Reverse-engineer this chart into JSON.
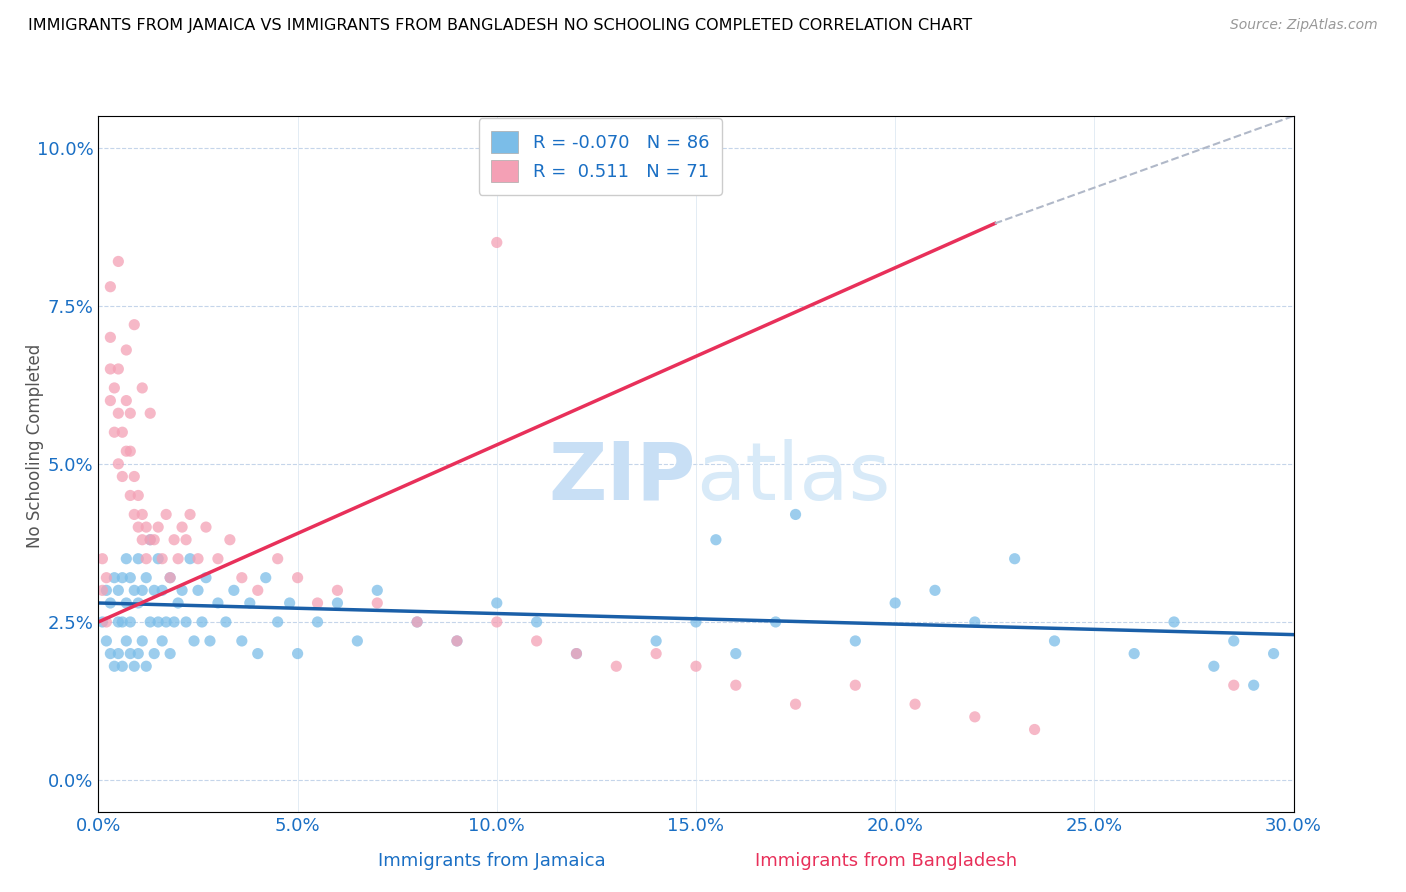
{
  "title": "IMMIGRANTS FROM JAMAICA VS IMMIGRANTS FROM BANGLADESH NO SCHOOLING COMPLETED CORRELATION CHART",
  "source": "Source: ZipAtlas.com",
  "xlabel_blue": "Immigrants from Jamaica",
  "xlabel_pink": "Immigrants from Bangladesh",
  "ylabel": "No Schooling Completed",
  "r_blue": -0.07,
  "n_blue": 86,
  "r_pink": 0.511,
  "n_pink": 71,
  "xlim": [
    0.0,
    0.3
  ],
  "ylim": [
    -0.005,
    0.105
  ],
  "color_blue": "#7bbde8",
  "color_pink": "#f4a0b5",
  "color_blue_line": "#1a5fa8",
  "color_pink_line": "#e8305a",
  "axis_color": "#1a6fc4",
  "watermark_color": "#c8dff5",
  "blue_scatter_x": [
    0.001,
    0.002,
    0.002,
    0.003,
    0.003,
    0.004,
    0.004,
    0.005,
    0.005,
    0.005,
    0.006,
    0.006,
    0.006,
    0.007,
    0.007,
    0.007,
    0.008,
    0.008,
    0.008,
    0.009,
    0.009,
    0.01,
    0.01,
    0.01,
    0.011,
    0.011,
    0.012,
    0.012,
    0.013,
    0.013,
    0.014,
    0.014,
    0.015,
    0.015,
    0.016,
    0.016,
    0.017,
    0.018,
    0.018,
    0.019,
    0.02,
    0.021,
    0.022,
    0.023,
    0.024,
    0.025,
    0.026,
    0.027,
    0.028,
    0.03,
    0.032,
    0.034,
    0.036,
    0.038,
    0.04,
    0.042,
    0.045,
    0.048,
    0.05,
    0.055,
    0.06,
    0.065,
    0.07,
    0.08,
    0.09,
    0.1,
    0.11,
    0.12,
    0.14,
    0.15,
    0.16,
    0.17,
    0.19,
    0.2,
    0.22,
    0.24,
    0.26,
    0.27,
    0.28,
    0.285,
    0.29,
    0.295,
    0.155,
    0.175,
    0.21,
    0.23
  ],
  "blue_scatter_y": [
    0.025,
    0.022,
    0.03,
    0.02,
    0.028,
    0.018,
    0.032,
    0.02,
    0.025,
    0.03,
    0.018,
    0.025,
    0.032,
    0.022,
    0.028,
    0.035,
    0.02,
    0.025,
    0.032,
    0.018,
    0.03,
    0.02,
    0.028,
    0.035,
    0.022,
    0.03,
    0.018,
    0.032,
    0.025,
    0.038,
    0.02,
    0.03,
    0.025,
    0.035,
    0.022,
    0.03,
    0.025,
    0.02,
    0.032,
    0.025,
    0.028,
    0.03,
    0.025,
    0.035,
    0.022,
    0.03,
    0.025,
    0.032,
    0.022,
    0.028,
    0.025,
    0.03,
    0.022,
    0.028,
    0.02,
    0.032,
    0.025,
    0.028,
    0.02,
    0.025,
    0.028,
    0.022,
    0.03,
    0.025,
    0.022,
    0.028,
    0.025,
    0.02,
    0.022,
    0.025,
    0.02,
    0.025,
    0.022,
    0.028,
    0.025,
    0.022,
    0.02,
    0.025,
    0.018,
    0.022,
    0.015,
    0.02,
    0.038,
    0.042,
    0.03,
    0.035
  ],
  "pink_scatter_x": [
    0.001,
    0.001,
    0.002,
    0.002,
    0.003,
    0.003,
    0.003,
    0.004,
    0.004,
    0.005,
    0.005,
    0.005,
    0.006,
    0.006,
    0.007,
    0.007,
    0.008,
    0.008,
    0.008,
    0.009,
    0.009,
    0.01,
    0.01,
    0.011,
    0.011,
    0.012,
    0.012,
    0.013,
    0.014,
    0.015,
    0.016,
    0.017,
    0.018,
    0.019,
    0.02,
    0.021,
    0.022,
    0.023,
    0.025,
    0.027,
    0.03,
    0.033,
    0.036,
    0.04,
    0.045,
    0.05,
    0.055,
    0.06,
    0.07,
    0.08,
    0.09,
    0.1,
    0.11,
    0.12,
    0.13,
    0.14,
    0.15,
    0.16,
    0.175,
    0.19,
    0.205,
    0.22,
    0.235,
    0.003,
    0.005,
    0.007,
    0.009,
    0.011,
    0.013,
    0.1,
    0.285
  ],
  "pink_scatter_y": [
    0.03,
    0.035,
    0.025,
    0.032,
    0.06,
    0.065,
    0.07,
    0.055,
    0.062,
    0.05,
    0.058,
    0.065,
    0.048,
    0.055,
    0.052,
    0.06,
    0.045,
    0.052,
    0.058,
    0.042,
    0.048,
    0.04,
    0.045,
    0.038,
    0.042,
    0.035,
    0.04,
    0.038,
    0.038,
    0.04,
    0.035,
    0.042,
    0.032,
    0.038,
    0.035,
    0.04,
    0.038,
    0.042,
    0.035,
    0.04,
    0.035,
    0.038,
    0.032,
    0.03,
    0.035,
    0.032,
    0.028,
    0.03,
    0.028,
    0.025,
    0.022,
    0.025,
    0.022,
    0.02,
    0.018,
    0.02,
    0.018,
    0.015,
    0.012,
    0.015,
    0.012,
    0.01,
    0.008,
    0.078,
    0.082,
    0.068,
    0.072,
    0.062,
    0.058,
    0.085,
    0.015
  ],
  "blue_line_x": [
    0.0,
    0.3
  ],
  "blue_line_y": [
    0.028,
    0.023
  ],
  "pink_line_x": [
    0.0,
    0.225
  ],
  "pink_line_y": [
    0.025,
    0.088
  ],
  "dash_line_x": [
    0.225,
    0.3
  ],
  "dash_line_y": [
    0.088,
    0.105
  ],
  "yticks": [
    0.0,
    0.025,
    0.05,
    0.075,
    0.1
  ],
  "xticks": [
    0.0,
    0.05,
    0.1,
    0.15,
    0.2,
    0.25,
    0.3
  ]
}
